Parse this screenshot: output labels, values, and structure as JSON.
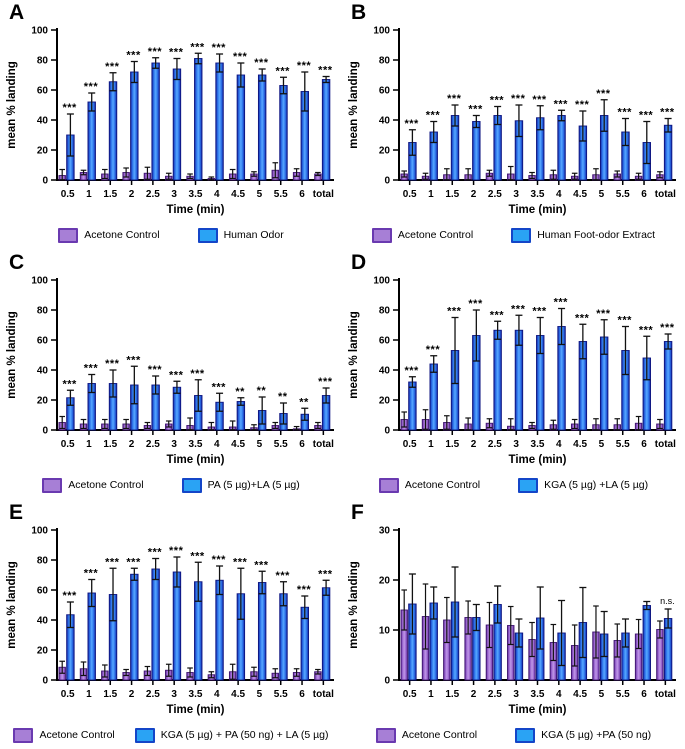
{
  "colors": {
    "purple_fill": "#9a66cf",
    "purple_light": "#bf97e8",
    "purple_dark": "#5a2596",
    "purple_stroke": "#3f1570",
    "blue_fill": "#2b6fe8",
    "blue_light": "#57a8ff",
    "blue_dark": "#16249f",
    "blue_stroke": "#0d1480",
    "legend_purple_fill": "#a77fd6",
    "legend_purple_border": "#6a3ab0",
    "legend_blue_fill": "#2aa3f4",
    "legend_blue_border": "#1446c8",
    "error_bar": "#111111",
    "axis": "#000000"
  },
  "chart_data": [
    {
      "panel": "A",
      "type": "bar",
      "xlabel": "Time (min)",
      "ylabel": "mean % landing",
      "ylim": [
        0,
        100
      ],
      "yticks": [
        0,
        20,
        40,
        60,
        80,
        100
      ],
      "categories": [
        "0.5",
        "1",
        "1.5",
        "2",
        "2.5",
        "3",
        "3.5",
        "4",
        "4.5",
        "5",
        "5.5",
        "6",
        "total"
      ],
      "series": [
        {
          "name": "Acetone Control",
          "color": "purple",
          "values": [
            3,
            5,
            4,
            5,
            4.5,
            2.5,
            2.5,
            1,
            4,
            4,
            6.5,
            5,
            4
          ],
          "errors": [
            4,
            1.5,
            3,
            3,
            4,
            2,
            1.5,
            1,
            3,
            1.5,
            5,
            2.5,
            1
          ]
        },
        {
          "name": "Human Odor",
          "color": "blue",
          "values": [
            30,
            52,
            65.5,
            72,
            78,
            74,
            81,
            78,
            70,
            70,
            63,
            59,
            67
          ],
          "errors": [
            14,
            6,
            6,
            7,
            3.5,
            7,
            3.5,
            6,
            8,
            4,
            5.5,
            13,
            2
          ]
        }
      ],
      "significance": [
        "***",
        "***",
        "***",
        "***",
        "***",
        "***",
        "***",
        "***",
        "***",
        "***",
        "***",
        "***",
        "***"
      ]
    },
    {
      "panel": "B",
      "type": "bar",
      "xlabel": "Time (min)",
      "ylabel": "mean % landing",
      "ylim": [
        0,
        100
      ],
      "yticks": [
        0,
        20,
        40,
        60,
        80,
        100
      ],
      "categories": [
        "0.5",
        "1",
        "1.5",
        "2",
        "2.5",
        "3",
        "3.5",
        "4",
        "4.5",
        "5",
        "5.5",
        "6",
        "total"
      ],
      "series": [
        {
          "name": "Acetone Control",
          "color": "purple",
          "values": [
            4,
            2.5,
            3.5,
            3.5,
            4.5,
            4,
            3,
            3.5,
            2.5,
            3.5,
            4,
            2.5,
            3.5
          ],
          "errors": [
            2,
            2,
            4,
            4,
            2,
            5,
            2,
            3,
            2,
            4,
            2,
            2,
            2
          ]
        },
        {
          "name": "Human Foot-odor Extract",
          "color": "blue",
          "values": [
            25,
            32,
            43,
            39,
            43,
            39.5,
            41.5,
            43,
            36,
            43,
            32,
            25,
            36.5
          ],
          "errors": [
            8.5,
            7,
            7,
            4,
            6,
            10.5,
            8,
            3.5,
            10,
            10.5,
            9,
            14,
            4.5
          ]
        }
      ],
      "significance": [
        "***",
        "***",
        "***",
        "***",
        "***",
        "***",
        "***",
        "***",
        "***",
        "***",
        "***",
        "***",
        "***"
      ]
    },
    {
      "panel": "C",
      "type": "bar",
      "xlabel": "Time (min)",
      "ylabel": "mean % landing",
      "ylim": [
        0,
        100
      ],
      "yticks": [
        0,
        20,
        40,
        60,
        80,
        100
      ],
      "categories": [
        "0.5",
        "1",
        "1.5",
        "2",
        "2.5",
        "3",
        "3.5",
        "4",
        "4.5",
        "5",
        "5.5",
        "6",
        "total"
      ],
      "series": [
        {
          "name": "Acetone Control",
          "color": "purple",
          "values": [
            5,
            4,
            4,
            4,
            3,
            4,
            3,
            2,
            2,
            1.5,
            3,
            0.8,
            3
          ],
          "errors": [
            4,
            3,
            3,
            3,
            2,
            2,
            5,
            3,
            4,
            2,
            2,
            1.5,
            2
          ]
        },
        {
          "name": "PA (5 µg)+LA (5 µg)",
          "color": "blue",
          "values": [
            21.5,
            31,
            31,
            30,
            30,
            28.5,
            23,
            18.5,
            19,
            13,
            11,
            10.5,
            23
          ],
          "errors": [
            5,
            6,
            9,
            12.5,
            6,
            4,
            10.5,
            6,
            2.5,
            9,
            7,
            4,
            5
          ]
        }
      ],
      "significance": [
        "***",
        "***",
        "***",
        "***",
        "***",
        "***",
        "***",
        "***",
        "**",
        "**",
        "**",
        "**",
        "***"
      ]
    },
    {
      "panel": "D",
      "type": "bar",
      "xlabel": "Time (min)",
      "ylabel": "mean % landing",
      "ylim": [
        0,
        100
      ],
      "yticks": [
        0,
        20,
        40,
        60,
        80,
        100
      ],
      "categories": [
        "0.5",
        "1",
        "1.5",
        "2",
        "2.5",
        "3",
        "3.5",
        "4",
        "4.5",
        "5",
        "5.5",
        "6",
        "total"
      ],
      "series": [
        {
          "name": "Acetone Control",
          "color": "purple",
          "values": [
            7,
            7,
            5,
            4,
            4.5,
            2.5,
            3,
            3.5,
            4,
            3.5,
            3.5,
            4.5,
            4
          ],
          "errors": [
            5,
            6.5,
            4.5,
            4,
            3,
            5,
            2,
            3,
            3,
            4,
            4,
            4.5,
            3
          ]
        },
        {
          "name": "KGA (5 µg) +LA (5 µg)",
          "color": "blue",
          "values": [
            32,
            44,
            53,
            63,
            66.5,
            66.5,
            63,
            69,
            59,
            62,
            53,
            48,
            59
          ],
          "errors": [
            3.5,
            5.5,
            22,
            17,
            6,
            10,
            12,
            12,
            11.5,
            11.5,
            16,
            14.5,
            5
          ]
        }
      ],
      "significance": [
        "***",
        "***",
        "***",
        "***",
        "***",
        "***",
        "***",
        "***",
        "***",
        "***",
        "***",
        "***",
        "***"
      ]
    },
    {
      "panel": "E",
      "type": "bar",
      "xlabel": "Time (min)",
      "ylabel": "mean % landing",
      "ylim": [
        0,
        100
      ],
      "yticks": [
        0,
        20,
        40,
        60,
        80,
        100
      ],
      "categories": [
        "0.5",
        "1",
        "1.5",
        "2",
        "2.5",
        "3",
        "3.5",
        "4",
        "4.5",
        "5",
        "5.5",
        "6",
        "total"
      ],
      "series": [
        {
          "name": "Acetone Control",
          "color": "purple",
          "values": [
            8.5,
            7.5,
            6,
            5,
            6,
            6.5,
            5,
            3.5,
            5.5,
            5.5,
            4.5,
            5,
            5.5
          ],
          "errors": [
            4,
            4.5,
            4,
            2,
            3,
            4,
            3,
            2,
            5,
            3,
            3,
            2.5,
            1.5
          ]
        },
        {
          "name": "KGA (5 µg) + PA (50 ng) + LA (5 µg)",
          "color": "blue",
          "values": [
            43.5,
            58,
            57,
            70.5,
            74,
            72,
            65.5,
            66.5,
            57.5,
            65,
            57.5,
            48.5,
            61.5
          ],
          "errors": [
            8.5,
            9,
            17.5,
            4,
            7,
            10,
            13,
            9.5,
            17,
            7.5,
            8,
            7.5,
            5
          ]
        }
      ],
      "significance": [
        "***",
        "***",
        "***",
        "***",
        "***",
        "***",
        "***",
        "***",
        "***",
        "***",
        "***",
        "***",
        "***"
      ]
    },
    {
      "panel": "F",
      "type": "bar",
      "xlabel": "Time (min)",
      "ylabel": "mean % landing",
      "ylim": [
        0,
        30
      ],
      "yticks": [
        0,
        10,
        20,
        30
      ],
      "categories": [
        "0.5",
        "1",
        "1.5",
        "2",
        "2.5",
        "3",
        "3.5",
        "4",
        "4.5",
        "5",
        "5.5",
        "6",
        "total"
      ],
      "series": [
        {
          "name": "Acetone Control",
          "color": "purple",
          "values": [
            14,
            12.7,
            12,
            12.5,
            11,
            10.9,
            8.1,
            7.5,
            6.9,
            9.6,
            7.9,
            9.2,
            10.1
          ],
          "errors": [
            4,
            6.5,
            4.5,
            3.3,
            4.5,
            3.8,
            3.4,
            3.6,
            4.1,
            5.2,
            3.3,
            2.9,
            1.7
          ]
        },
        {
          "name": "KGA (5 µg) +PA (50 ng)",
          "color": "blue",
          "values": [
            15.2,
            15.4,
            15.6,
            12.5,
            15.1,
            9.4,
            12.4,
            9.4,
            11.5,
            9.2,
            9.4,
            14.9,
            12.3
          ],
          "errors": [
            6,
            3.2,
            7,
            2.6,
            3.7,
            2.8,
            6.2,
            6.5,
            7,
            4.5,
            2.8,
            0.8,
            1.9
          ]
        }
      ],
      "significance": [
        "",
        "",
        "",
        "",
        "",
        "",
        "",
        "",
        "",
        "",
        "",
        "",
        "n.s."
      ]
    }
  ]
}
